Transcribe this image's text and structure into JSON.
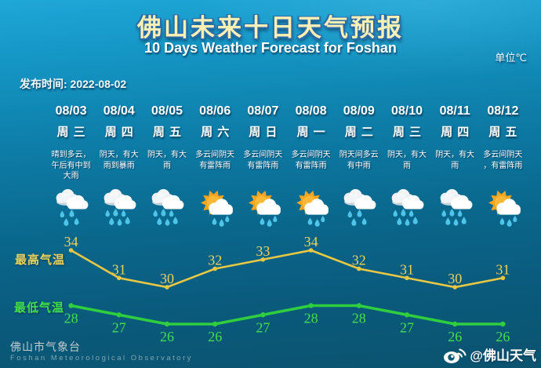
{
  "header": {
    "title": "佛山未来十日天气预报",
    "subtitle": "10 Days Weather Forecast for Foshan",
    "unit_label": "单位℃",
    "publish_time": "发布时间: 2022-08-02"
  },
  "days": [
    {
      "date": "08/03",
      "weekday": "周三",
      "desc": "晴到多云，午后有中到大雨",
      "icon": "rain"
    },
    {
      "date": "08/04",
      "weekday": "周四",
      "desc": "阴天，有大雨到暴雨",
      "icon": "heavy-rain"
    },
    {
      "date": "08/05",
      "weekday": "周五",
      "desc": "阴天，有大雨",
      "icon": "heavy-rain"
    },
    {
      "date": "08/06",
      "weekday": "周六",
      "desc": "多云间阴天有雷阵雨",
      "icon": "sun-rain"
    },
    {
      "date": "08/07",
      "weekday": "周日",
      "desc": "多云间阴天有雷阵雨",
      "icon": "sun-rain"
    },
    {
      "date": "08/08",
      "weekday": "周一",
      "desc": "多云间阴天有雷阵雨",
      "icon": "sun-rain"
    },
    {
      "date": "08/09",
      "weekday": "周二",
      "desc": "阴天间多云有中雨",
      "icon": "rain"
    },
    {
      "date": "08/10",
      "weekday": "周三",
      "desc": "阴天，有大雨",
      "icon": "heavy-rain"
    },
    {
      "date": "08/11",
      "weekday": "周四",
      "desc": "阴天，有大雨",
      "icon": "heavy-rain"
    },
    {
      "date": "08/12",
      "weekday": "周五",
      "desc": "多云间阴天，有雷阵雨",
      "icon": "sun-rain"
    }
  ],
  "chart_data": {
    "type": "line",
    "title": "佛山未来十日天气预报",
    "categories": [
      "08/03",
      "08/04",
      "08/05",
      "08/06",
      "08/07",
      "08/08",
      "08/09",
      "08/10",
      "08/11",
      "08/12"
    ],
    "series": [
      {
        "name": "最高气温",
        "values": [
          34,
          31,
          30,
          32,
          33,
          34,
          32,
          31,
          30,
          31
        ],
        "color": "#E7C743",
        "label_color": "#EBD45A",
        "label_position": "above"
      },
      {
        "name": "最低气温",
        "values": [
          28,
          27,
          26,
          26,
          27,
          28,
          28,
          27,
          26,
          26
        ],
        "color": "#2FCE3E",
        "label_color": "#43E04C",
        "label_position": "below"
      }
    ],
    "unit": "℃",
    "ylim": [
      26,
      34
    ],
    "grid": false,
    "legend_position": "left"
  },
  "footer": {
    "org_cn": "佛山市气象台",
    "org_en": "Foshan Meteorological Observatory",
    "weibo_handle": "@佛山天气"
  }
}
